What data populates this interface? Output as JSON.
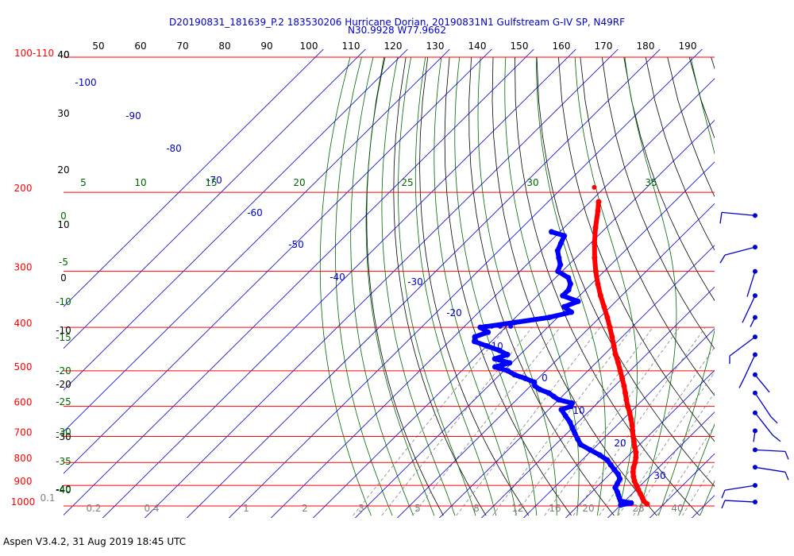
{
  "header": {
    "title_line1": "D20190831_181639_P.2 183530206 Hurricane Dorian, 20190831N1 Gulfstream G-IV SP, N49RF",
    "title_line2": "N30.9928 W77.9662"
  },
  "footer": {
    "text": "Aspen V3.4.2, 31 Aug 2019  18:45 UTC"
  },
  "colors": {
    "isobar": "#ff0000",
    "isotherm": "#0000cc",
    "dry_adiabat": "#000000",
    "moist_adiabat": "#006600",
    "mixing_ratio": "#808080",
    "temperature_trace": "#ff0000",
    "dewpoint_trace": "#0000ff",
    "wind_barb": "#0000cc"
  },
  "chart_data": {
    "type": "skew-t log-p",
    "pressure_range_hpa": [
      100,
      1000
    ],
    "pressure_levels": [
      100,
      200,
      300,
      400,
      500,
      600,
      700,
      800,
      900,
      1000
    ],
    "pressure_labels": [
      "100-110",
      "200",
      "300",
      "400",
      "500",
      "600",
      "700",
      "800",
      "900",
      "1000"
    ],
    "top_scale_ticks": [
      40,
      50,
      60,
      70,
      80,
      90,
      100,
      110,
      120,
      130,
      140,
      150,
      160,
      170,
      180,
      190
    ],
    "left_scale_ticks": [
      "40",
      "30",
      "20",
      "10",
      "0",
      "-10",
      "-20",
      "-30",
      "-40"
    ],
    "isotherm_labels": [
      -100,
      -90,
      -80,
      -70,
      -60,
      -50,
      -40,
      -30,
      -20,
      -10,
      0,
      10,
      20,
      30
    ],
    "moist_adiabat_top_labels": [
      5,
      10,
      15,
      20,
      25,
      30,
      35
    ],
    "moist_adiabat_left_labels": [
      0,
      -5,
      -10,
      -15,
      -20,
      -25,
      -30,
      -35,
      -40
    ],
    "mixing_ratio_labels": [
      "0.1",
      "0.2",
      "0.4",
      "1",
      "2",
      "3",
      "5",
      "8",
      "12",
      "16",
      "20",
      "28",
      "40"
    ],
    "temperature_series": {
      "pressure_hpa": [
        990,
        975,
        960,
        940,
        920,
        900,
        880,
        860,
        840,
        820,
        800,
        780,
        760,
        740,
        720,
        700,
        680,
        660,
        640,
        620,
        600,
        580,
        560,
        540,
        520,
        500,
        480,
        460,
        440,
        420,
        400,
        380,
        360,
        340,
        320,
        300,
        280,
        260,
        240,
        220,
        210
      ],
      "temp_c": [
        26.0,
        24.5,
        23.5,
        22.0,
        20.5,
        19.0,
        17.5,
        16.2,
        15.0,
        14.0,
        13.2,
        12.2,
        11.0,
        9.5,
        8.0,
        6.5,
        5.0,
        3.5,
        1.8,
        0.0,
        -2.0,
        -3.9,
        -5.8,
        -7.8,
        -10.0,
        -12.3,
        -14.7,
        -17.3,
        -19.8,
        -22.4,
        -25.2,
        -28.2,
        -31.5,
        -35.0,
        -38.5,
        -42.0,
        -45.5,
        -49.0,
        -52.5,
        -56.0,
        -58.0
      ]
    },
    "temperature_stray_point": {
      "pressure_hpa": 195,
      "temp_c": -62.5
    },
    "dewpoint_series": {
      "pressure_hpa": [
        995,
        985,
        975,
        960,
        945,
        930,
        910,
        890,
        870,
        850,
        830,
        810,
        790,
        770,
        750,
        730,
        710,
        690,
        670,
        650,
        630,
        610,
        600,
        590,
        580,
        570,
        560,
        550,
        540,
        530,
        520,
        510,
        500,
        490,
        480,
        470,
        460,
        450,
        440,
        430,
        420,
        410,
        400,
        390,
        380,
        370,
        360,
        350,
        340,
        330,
        320,
        310,
        300,
        290,
        280,
        270,
        260,
        250,
        245
      ],
      "dewpt_c": [
        20.0,
        22.0,
        19.0,
        18.0,
        17.0,
        16.0,
        14.5,
        14.0,
        13.5,
        12.0,
        10.0,
        8.0,
        6.0,
        3.0,
        -0.5,
        -4.0,
        -6.0,
        -8.0,
        -10.0,
        -12.0,
        -14.5,
        -17.0,
        -15.5,
        -16.0,
        -20.0,
        -22.0,
        -24.0,
        -27.0,
        -29.0,
        -30.0,
        -33.0,
        -36.5,
        -39.0,
        -43.0,
        -40.5,
        -45.0,
        -43.0,
        -46.0,
        -50.0,
        -54.0,
        -55.0,
        -53.0,
        -56.0,
        -49.0,
        -42.0,
        -38.0,
        -41.0,
        -39.0,
        -44.0,
        -44.0,
        -45.0,
        -47.0,
        -51.0,
        -52.0,
        -54.0,
        -56.0,
        -57.0,
        -58.0,
        -62.0
      ]
    },
    "dewpoint_stray_points": {
      "pressure_hpa": [
        398,
        398,
        398,
        398
      ],
      "dewpt_c": [
        -55.0,
        -53.5,
        -51.5,
        -49.0
      ]
    },
    "wind_barbs": [
      {
        "pressure_hpa": 230,
        "speed_kt": 25
      },
      {
        "pressure_hpa": 265,
        "speed_kt": 20
      },
      {
        "pressure_hpa": 300,
        "speed_kt": 5
      },
      {
        "pressure_hpa": 340,
        "speed_kt": 10
      },
      {
        "pressure_hpa": 380,
        "speed_kt": 5
      },
      {
        "pressure_hpa": 420,
        "speed_kt": 10
      },
      {
        "pressure_hpa": 460,
        "speed_kt": 10
      },
      {
        "pressure_hpa": 510,
        "speed_kt": 5
      },
      {
        "pressure_hpa": 560,
        "speed_kt": 10
      },
      {
        "pressure_hpa": 620,
        "speed_kt": 10
      },
      {
        "pressure_hpa": 680,
        "speed_kt": 10
      },
      {
        "pressure_hpa": 750,
        "speed_kt": 10
      },
      {
        "pressure_hpa": 820,
        "speed_kt": 10
      },
      {
        "pressure_hpa": 900,
        "speed_kt": 10
      },
      {
        "pressure_hpa": 980,
        "speed_kt": 10
      }
    ]
  }
}
